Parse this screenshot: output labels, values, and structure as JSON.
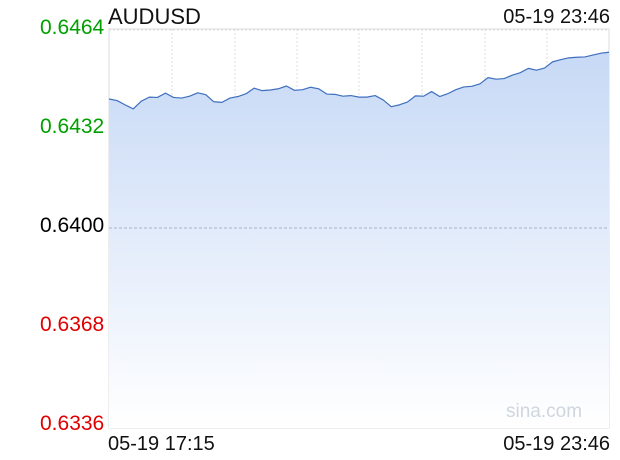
{
  "header": {
    "symbol": "AUDUSD",
    "timestamp": "05-19 23:46"
  },
  "watermark": "sina.com",
  "colors": {
    "up": "#00a000",
    "neutral": "#000000",
    "down": "#e00000",
    "line": "#3e6fbf",
    "fill_top": "#c7d9f6",
    "grid": "#dddddd",
    "baseline": "#aab4c8"
  },
  "chart_data": {
    "type": "area",
    "x_labels": [
      "05-19 17:15",
      "05-19 23:46"
    ],
    "y_ticks": [
      0.6464,
      0.6432,
      0.64,
      0.6368,
      0.6336
    ],
    "y_tick_labels": [
      "0.6464",
      "0.6432",
      "0.6400",
      "0.6368",
      "0.6336"
    ],
    "y_tick_status": [
      "up",
      "up",
      "neutral",
      "down",
      "down"
    ],
    "ylim": [
      0.6336,
      0.6464
    ],
    "baseline": 0.64,
    "grid": true,
    "values": [
      0.64417,
      0.64412,
      0.64398,
      0.64385,
      0.6441,
      0.64423,
      0.64422,
      0.64436,
      0.64422,
      0.6442,
      0.64426,
      0.64437,
      0.64431,
      0.64408,
      0.64406,
      0.6442,
      0.64425,
      0.64434,
      0.64452,
      0.64444,
      0.64446,
      0.6445,
      0.64459,
      0.64445,
      0.64447,
      0.64455,
      0.6445,
      0.64433,
      0.64432,
      0.64426,
      0.64428,
      0.64423,
      0.64423,
      0.64428,
      0.64414,
      0.64392,
      0.64398,
      0.64407,
      0.64427,
      0.64426,
      0.64441,
      0.64425,
      0.64434,
      0.64447,
      0.64456,
      0.64458,
      0.64466,
      0.64486,
      0.64481,
      0.64483,
      0.64494,
      0.64502,
      0.64516,
      0.6451,
      0.64517,
      0.64537,
      0.64544,
      0.6455,
      0.64552,
      0.64553,
      0.64559,
      0.64565,
      0.64568
    ]
  }
}
